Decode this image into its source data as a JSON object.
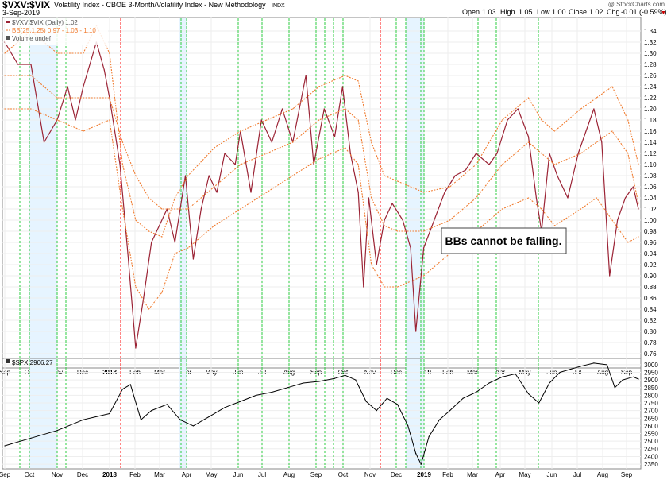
{
  "header": {
    "symbol": "$VXV:$VIX",
    "description": "Volatility Index - CBOE 3-Month/Volatility Index - New Methodology",
    "exchange": "INDX",
    "date": "3-Sep-2019",
    "watermark": "@ StockCharts.com",
    "ohlc": {
      "open_label": "Open",
      "open": "1.03",
      "high_label": "High",
      "high": "1.05",
      "low_label": "Low",
      "low": "1.00",
      "close_label": "Close",
      "close": "1.02",
      "chg_label": "Chg",
      "chg": "-0.01 (-0.59%)"
    }
  },
  "legend_top": [
    {
      "text": "$VXV:$VIX (Daily) 1.02",
      "color": "#9b2335"
    },
    {
      "text": "BB(25,1.25) 0.97 - 1.03 - 1.10",
      "color": "#f07c30"
    },
    {
      "text": "Volume undef",
      "color": "#555555"
    }
  ],
  "legend_bottom": {
    "text": "$SPX 2906.27",
    "color": "#000000"
  },
  "annotation": "BBs cannot be falling.",
  "colors": {
    "ratio_line": "#9b2335",
    "bollinger": "#f07c30",
    "spx": "#000000",
    "vline_green": "#2ecc40",
    "vline_red": "#ff4444",
    "highlight": "#e6f4ff"
  },
  "chart_data": [
    {
      "type": "line",
      "name": "$VXV:$VIX",
      "x_labels": [
        "Sep",
        "Oct",
        "Nov",
        "Dec",
        "2018",
        "Feb",
        "Mar",
        "Apr",
        "May",
        "Jun",
        "Jul",
        "Aug",
        "Sep",
        "Oct",
        "Nov",
        "Dec",
        "2019",
        "Feb",
        "Mar",
        "Apr",
        "May",
        "Jun",
        "Jul",
        "Aug",
        "Sep"
      ],
      "y_ticks": [
        "0.76",
        "0.78",
        "0.80",
        "0.82",
        "0.84",
        "0.86",
        "0.88",
        "0.90",
        "0.92",
        "0.94",
        "0.96",
        "0.98",
        "1.00",
        "1.02",
        "1.04",
        "1.06",
        "1.08",
        "1.10",
        "1.12",
        "1.14",
        "1.16",
        "1.18",
        "1.20",
        "1.22",
        "1.24",
        "1.26",
        "1.28",
        "1.30",
        "1.32",
        "1.34"
      ],
      "ylim": [
        0.74,
        1.35
      ],
      "x_domain": [
        0,
        24.2
      ],
      "series": [
        {
          "name": "$VXV:$VIX",
          "points": [
            [
              0,
              1.32
            ],
            [
              0.5,
              1.28
            ],
            [
              1,
              1.28
            ],
            [
              1.5,
              1.14
            ],
            [
              2,
              1.18
            ],
            [
              2.4,
              1.24
            ],
            [
              2.7,
              1.18
            ],
            [
              3,
              1.24
            ],
            [
              3.5,
              1.32
            ],
            [
              3.8,
              1.27
            ],
            [
              4.0,
              1.22
            ],
            [
              4.4,
              1.1
            ],
            [
              4.7,
              0.94
            ],
            [
              5.0,
              0.77
            ],
            [
              5.3,
              0.86
            ],
            [
              5.6,
              0.96
            ],
            [
              5.9,
              0.99
            ],
            [
              6.2,
              1.02
            ],
            [
              6.5,
              0.96
            ],
            [
              6.9,
              1.08
            ],
            [
              7.2,
              0.93
            ],
            [
              7.5,
              1.02
            ],
            [
              7.8,
              1.08
            ],
            [
              8.1,
              1.05
            ],
            [
              8.4,
              1.12
            ],
            [
              8.8,
              1.1
            ],
            [
              9.0,
              1.16
            ],
            [
              9.4,
              1.05
            ],
            [
              9.8,
              1.18
            ],
            [
              10.2,
              1.14
            ],
            [
              10.6,
              1.2
            ],
            [
              11.0,
              1.14
            ],
            [
              11.5,
              1.26
            ],
            [
              11.8,
              1.1
            ],
            [
              12.2,
              1.2
            ],
            [
              12.6,
              1.15
            ],
            [
              12.9,
              1.24
            ],
            [
              13.2,
              1.12
            ],
            [
              13.5,
              1.05
            ],
            [
              13.7,
              0.88
            ],
            [
              13.9,
              1.04
            ],
            [
              14.2,
              0.92
            ],
            [
              14.5,
              1.0
            ],
            [
              14.8,
              1.03
            ],
            [
              15.2,
              1.0
            ],
            [
              15.5,
              0.95
            ],
            [
              15.7,
              0.8
            ],
            [
              16.0,
              0.95
            ],
            [
              16.4,
              1.0
            ],
            [
              16.8,
              1.05
            ],
            [
              17.2,
              1.08
            ],
            [
              17.6,
              1.09
            ],
            [
              18.0,
              1.12
            ],
            [
              18.5,
              1.1
            ],
            [
              18.8,
              1.12
            ],
            [
              19.2,
              1.18
            ],
            [
              19.6,
              1.2
            ],
            [
              20.0,
              1.15
            ],
            [
              20.3,
              1.04
            ],
            [
              20.5,
              0.98
            ],
            [
              20.8,
              1.12
            ],
            [
              21.1,
              1.08
            ],
            [
              21.5,
              1.04
            ],
            [
              21.9,
              1.12
            ],
            [
              22.2,
              1.16
            ],
            [
              22.5,
              1.2
            ],
            [
              22.8,
              1.14
            ],
            [
              23.1,
              0.9
            ],
            [
              23.4,
              1.0
            ],
            [
              23.7,
              1.04
            ],
            [
              24.0,
              1.06
            ],
            [
              24.2,
              1.02
            ]
          ]
        },
        {
          "name": "BB upper",
          "points": [
            [
              0,
              1.3
            ],
            [
              1,
              1.34
            ],
            [
              2,
              1.3
            ],
            [
              3,
              1.3
            ],
            [
              3.5,
              1.35
            ],
            [
              4,
              1.3
            ],
            [
              4.5,
              1.1
            ],
            [
              5,
              1.0
            ],
            [
              5.5,
              0.98
            ],
            [
              6,
              0.97
            ],
            [
              6.5,
              1.04
            ],
            [
              7,
              1.08
            ],
            [
              8,
              1.13
            ],
            [
              9,
              1.16
            ],
            [
              10,
              1.18
            ],
            [
              11,
              1.2
            ],
            [
              12,
              1.24
            ],
            [
              13,
              1.26
            ],
            [
              13.5,
              1.25
            ],
            [
              14,
              1.14
            ],
            [
              14.5,
              1.08
            ],
            [
              15,
              1.07
            ],
            [
              16,
              1.05
            ],
            [
              17,
              1.06
            ],
            [
              18,
              1.1
            ],
            [
              19,
              1.18
            ],
            [
              20,
              1.22
            ],
            [
              20.5,
              1.18
            ],
            [
              21,
              1.16
            ],
            [
              22,
              1.2
            ],
            [
              22.6,
              1.22
            ],
            [
              23.2,
              1.24
            ],
            [
              23.8,
              1.18
            ],
            [
              24.2,
              1.1
            ]
          ]
        },
        {
          "name": "BB middle",
          "points": [
            [
              0,
              1.26
            ],
            [
              1,
              1.26
            ],
            [
              2,
              1.22
            ],
            [
              3,
              1.22
            ],
            [
              4,
              1.22
            ],
            [
              4.5,
              1.14
            ],
            [
              5,
              1.08
            ],
            [
              5.5,
              1.04
            ],
            [
              6,
              1.02
            ],
            [
              7,
              1.02
            ],
            [
              8,
              1.06
            ],
            [
              9,
              1.1
            ],
            [
              10,
              1.12
            ],
            [
              11,
              1.14
            ],
            [
              12,
              1.18
            ],
            [
              13,
              1.2
            ],
            [
              13.5,
              1.18
            ],
            [
              14,
              1.04
            ],
            [
              14.5,
              0.99
            ],
            [
              15,
              0.98
            ],
            [
              16,
              0.98
            ],
            [
              17,
              1.0
            ],
            [
              18,
              1.04
            ],
            [
              19,
              1.1
            ],
            [
              20,
              1.14
            ],
            [
              20.5,
              1.12
            ],
            [
              21,
              1.1
            ],
            [
              22,
              1.12
            ],
            [
              22.6,
              1.14
            ],
            [
              23.2,
              1.16
            ],
            [
              23.8,
              1.12
            ],
            [
              24.2,
              1.03
            ]
          ]
        },
        {
          "name": "BB lower",
          "points": [
            [
              0,
              1.2
            ],
            [
              1,
              1.2
            ],
            [
              2,
              1.18
            ],
            [
              3,
              1.16
            ],
            [
              4,
              1.18
            ],
            [
              4.5,
              1.02
            ],
            [
              5,
              0.88
            ],
            [
              5.5,
              0.84
            ],
            [
              6,
              0.87
            ],
            [
              6.5,
              0.94
            ],
            [
              7,
              0.95
            ],
            [
              8,
              0.99
            ],
            [
              9,
              1.02
            ],
            [
              10,
              1.05
            ],
            [
              11,
              1.08
            ],
            [
              12,
              1.11
            ],
            [
              13,
              1.13
            ],
            [
              13.5,
              1.1
            ],
            [
              14,
              0.92
            ],
            [
              14.5,
              0.88
            ],
            [
              15,
              0.88
            ],
            [
              16,
              0.9
            ],
            [
              17,
              0.94
            ],
            [
              18,
              0.98
            ],
            [
              19,
              1.02
            ],
            [
              20,
              1.04
            ],
            [
              20.5,
              1.02
            ],
            [
              21,
              0.99
            ],
            [
              22,
              1.02
            ],
            [
              22.6,
              1.04
            ],
            [
              23.2,
              1.0
            ],
            [
              23.8,
              0.96
            ],
            [
              24.2,
              0.97
            ]
          ]
        }
      ]
    },
    {
      "type": "line",
      "name": "$SPX",
      "x_labels": [
        "Sep",
        "Oct",
        "Nov",
        "Dec",
        "2018",
        "Feb",
        "Mar",
        "Apr",
        "May",
        "Jun",
        "Jul",
        "Aug",
        "Sep",
        "Oct",
        "Nov",
        "Dec",
        "2019",
        "Feb",
        "Mar",
        "Apr",
        "May",
        "Jun",
        "Jul",
        "Aug",
        "Sep"
      ],
      "y_ticks": [
        "2350",
        "2400",
        "2450",
        "2500",
        "2550",
        "2600",
        "2650",
        "2700",
        "2750",
        "2800",
        "2850",
        "2900",
        "2950",
        "3000"
      ],
      "ylim": [
        2340,
        3020
      ],
      "x_domain": [
        0,
        24.2
      ],
      "series": [
        {
          "name": "$SPX",
          "points": [
            [
              0,
              2470
            ],
            [
              1,
              2520
            ],
            [
              2,
              2570
            ],
            [
              3,
              2640
            ],
            [
              4,
              2680
            ],
            [
              4.5,
              2840
            ],
            [
              4.8,
              2870
            ],
            [
              5.2,
              2640
            ],
            [
              5.6,
              2700
            ],
            [
              6.2,
              2740
            ],
            [
              6.7,
              2640
            ],
            [
              7.2,
              2600
            ],
            [
              7.8,
              2660
            ],
            [
              8.4,
              2720
            ],
            [
              9.0,
              2760
            ],
            [
              9.6,
              2800
            ],
            [
              10.2,
              2820
            ],
            [
              10.8,
              2850
            ],
            [
              11.4,
              2880
            ],
            [
              12.0,
              2890
            ],
            [
              12.6,
              2910
            ],
            [
              13.0,
              2930
            ],
            [
              13.4,
              2900
            ],
            [
              13.8,
              2760
            ],
            [
              14.2,
              2700
            ],
            [
              14.6,
              2780
            ],
            [
              15.0,
              2740
            ],
            [
              15.4,
              2600
            ],
            [
              15.7,
              2420
            ],
            [
              15.9,
              2350
            ],
            [
              16.2,
              2530
            ],
            [
              16.6,
              2640
            ],
            [
              17.0,
              2700
            ],
            [
              17.5,
              2780
            ],
            [
              18.0,
              2820
            ],
            [
              18.5,
              2880
            ],
            [
              19.0,
              2920
            ],
            [
              19.5,
              2940
            ],
            [
              20.0,
              2810
            ],
            [
              20.4,
              2750
            ],
            [
              20.8,
              2880
            ],
            [
              21.2,
              2950
            ],
            [
              21.6,
              2970
            ],
            [
              22.0,
              2990
            ],
            [
              22.5,
              3010
            ],
            [
              23.0,
              3000
            ],
            [
              23.3,
              2850
            ],
            [
              23.6,
              2900
            ],
            [
              24.0,
              2920
            ],
            [
              24.2,
              2906
            ]
          ]
        }
      ]
    }
  ]
}
